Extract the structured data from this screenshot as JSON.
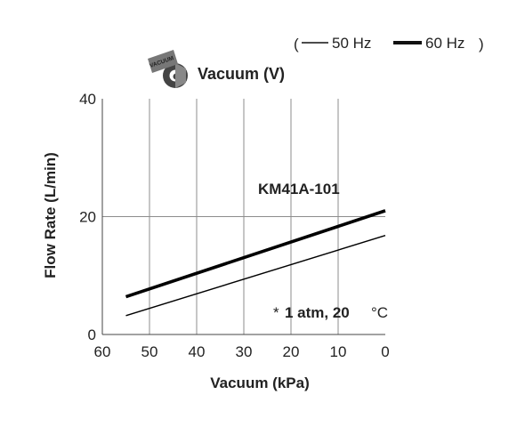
{
  "legend": {
    "open_paren": "(",
    "series_50_label": "50 Hz",
    "series_60_label": "60 Hz",
    "close_paren": ")"
  },
  "header": {
    "icon_name": "vacuum-pump-icon",
    "icon_text": "VACUUM",
    "title": "Vacuum (V)"
  },
  "note": {
    "star": "*",
    "main": "1 atm, 20",
    "unit": "°C"
  },
  "chart_data": {
    "type": "line",
    "title": "Vacuum (V)",
    "xlabel": "Vacuum (kPa)",
    "ylabel": "Flow Rate (L/min)",
    "annotation": "KM41A-101",
    "x_reversed": true,
    "xlim": [
      60,
      0
    ],
    "ylim": [
      0,
      40
    ],
    "xticks": [
      60,
      50,
      40,
      30,
      20,
      10,
      0
    ],
    "yticks": [
      0,
      20,
      40
    ],
    "grid": "vertical lines at each x tick, horizontal line at y=20",
    "legend_position": "top-right",
    "series": [
      {
        "name": "60 Hz",
        "line": "thick",
        "color": "#000000",
        "x": [
          55,
          0
        ],
        "y": [
          6.4,
          21.0
        ]
      },
      {
        "name": "50 Hz",
        "line": "thin",
        "color": "#000000",
        "x": [
          55,
          0
        ],
        "y": [
          3.2,
          16.8
        ]
      }
    ]
  }
}
